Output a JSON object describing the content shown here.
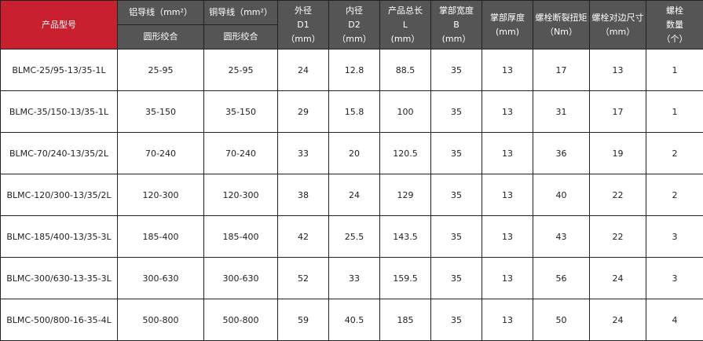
{
  "colors": {
    "header_bg": "#555555",
    "model_header_bg": "#c8202f"
  },
  "header": {
    "model": "产品型号",
    "al": "铝导线（mm²）",
    "cu": "铜导线（mm²）",
    "al_sub": "圆形绞合",
    "cu_sub": "圆形绞合",
    "d1": [
      "外径",
      "D1",
      "（mm）"
    ],
    "d2": [
      "内径",
      "D2",
      "（mm）"
    ],
    "l": [
      "产品总长",
      "L",
      "(mm）"
    ],
    "b": [
      "掌部宽度",
      "B",
      "(mm）"
    ],
    "t": [
      "掌部厚度",
      "(mm)"
    ],
    "torque": [
      "螺栓断裂扭矩",
      "（Nm）"
    ],
    "size": [
      "螺栓对边尺寸",
      "（mm）"
    ],
    "count": [
      "螺栓",
      "数量",
      "（个）"
    ]
  },
  "rows": [
    [
      "BLMC-25/95-13/35-1L",
      "25-95",
      "25-95",
      "24",
      "12.8",
      "88.5",
      "35",
      "13",
      "17",
      "13",
      "1"
    ],
    [
      "BLMC-35/150-13/35-1L",
      "35-150",
      "35-150",
      "29",
      "15.8",
      "100",
      "35",
      "13",
      "31",
      "17",
      "1"
    ],
    [
      "BLMC-70/240-13/35/2L",
      "70-240",
      "70-240",
      "33",
      "20",
      "120.5",
      "35",
      "13",
      "36",
      "19",
      "2"
    ],
    [
      "BLMC-120/300-13/35/2L",
      "120-300",
      "120-300",
      "38",
      "24",
      "129",
      "35",
      "13",
      "40",
      "22",
      "2"
    ],
    [
      "BLMC-185/400-13/35-3L",
      "185-400",
      "185-400",
      "42",
      "25.5",
      "143.5",
      "35",
      "13",
      "43",
      "22",
      "3"
    ],
    [
      "BLMC-300/630-13-35-3L",
      "300-630",
      "300-630",
      "52",
      "33",
      "159.5",
      "35",
      "13",
      "56",
      "24",
      "3"
    ],
    [
      "BLMC-500/800-16-35-4L",
      "500-800",
      "500-800",
      "59",
      "40.5",
      "185",
      "35",
      "13",
      "50",
      "24",
      "4"
    ]
  ]
}
